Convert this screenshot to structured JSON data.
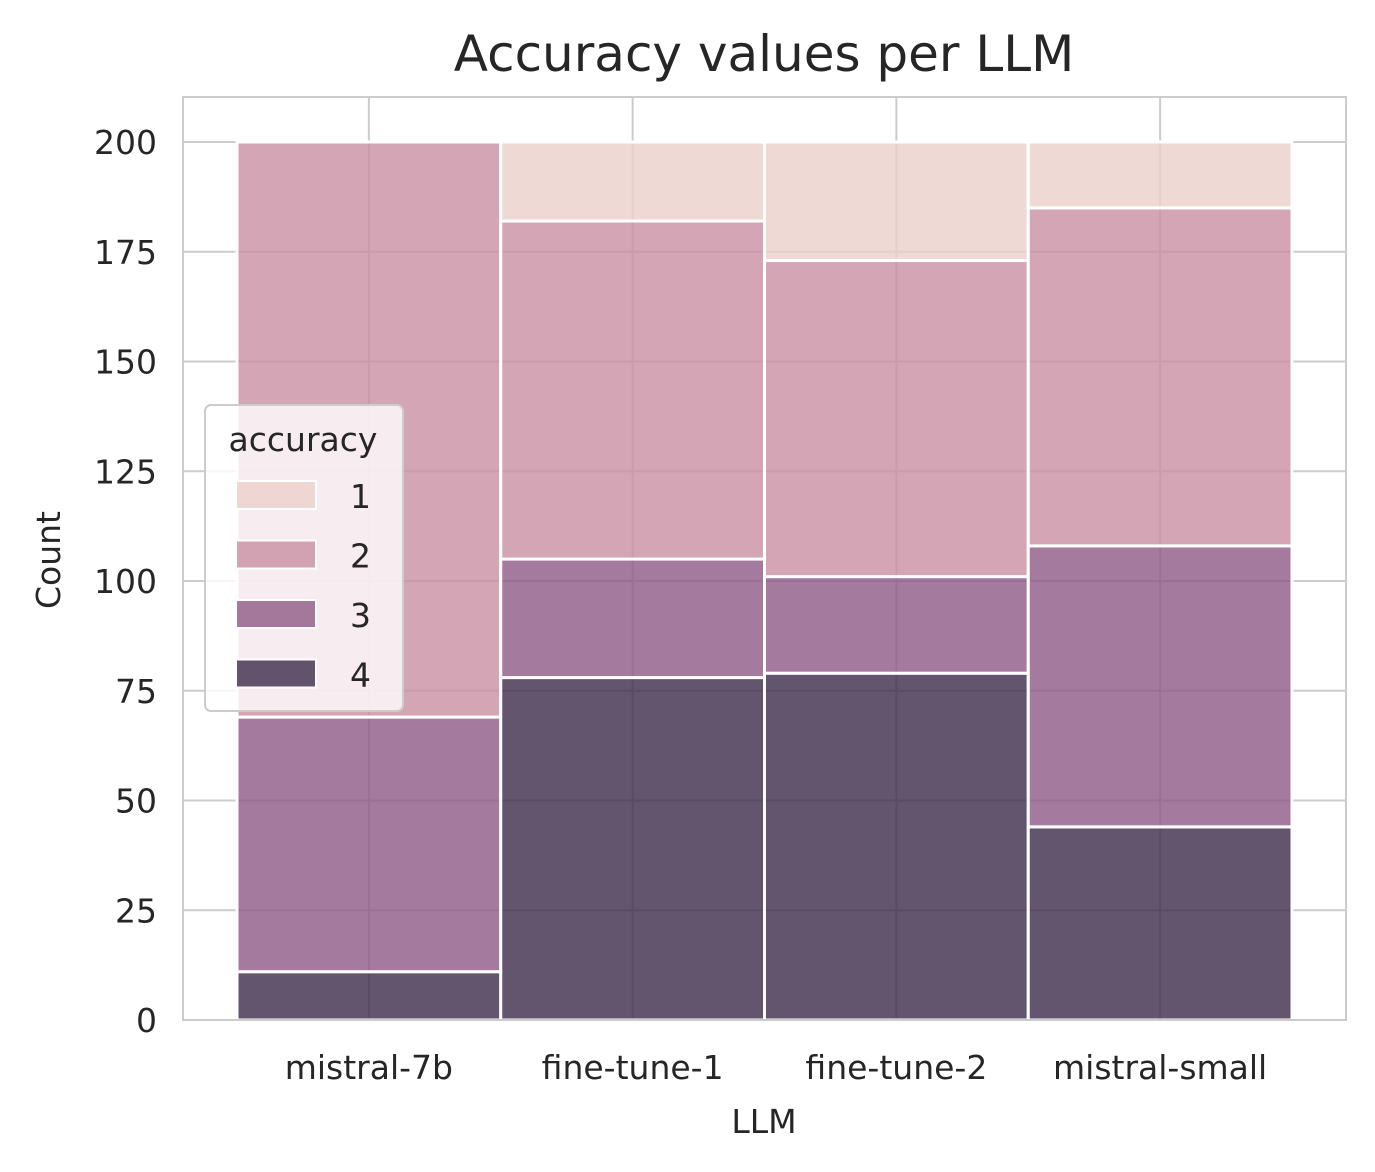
{
  "chart_data": {
    "type": "bar",
    "stacked": true,
    "title": "Accuracy values per LLM",
    "xlabel": "LLM",
    "ylabel": "Count",
    "categories": [
      "mistral-7b",
      "fine-tune-1",
      "fine-tune-2",
      "mistral-small"
    ],
    "ylim": [
      0,
      210
    ],
    "yticks": [
      0,
      25,
      50,
      75,
      100,
      125,
      150,
      175,
      200
    ],
    "grid": true,
    "legend": {
      "title": "accuracy",
      "placement": "center-left"
    },
    "series": [
      {
        "name": "4",
        "color": "#3d2b4a",
        "values": [
          11,
          78,
          79,
          44
        ]
      },
      {
        "name": "3",
        "color": "#8d5a86",
        "values": [
          58,
          27,
          22,
          64
        ]
      },
      {
        "name": "2",
        "color": "#c98ea2",
        "values": [
          131,
          77,
          72,
          77
        ]
      },
      {
        "name": "1",
        "color": "#ebcfca",
        "values": [
          0,
          18,
          27,
          15
        ]
      }
    ]
  }
}
